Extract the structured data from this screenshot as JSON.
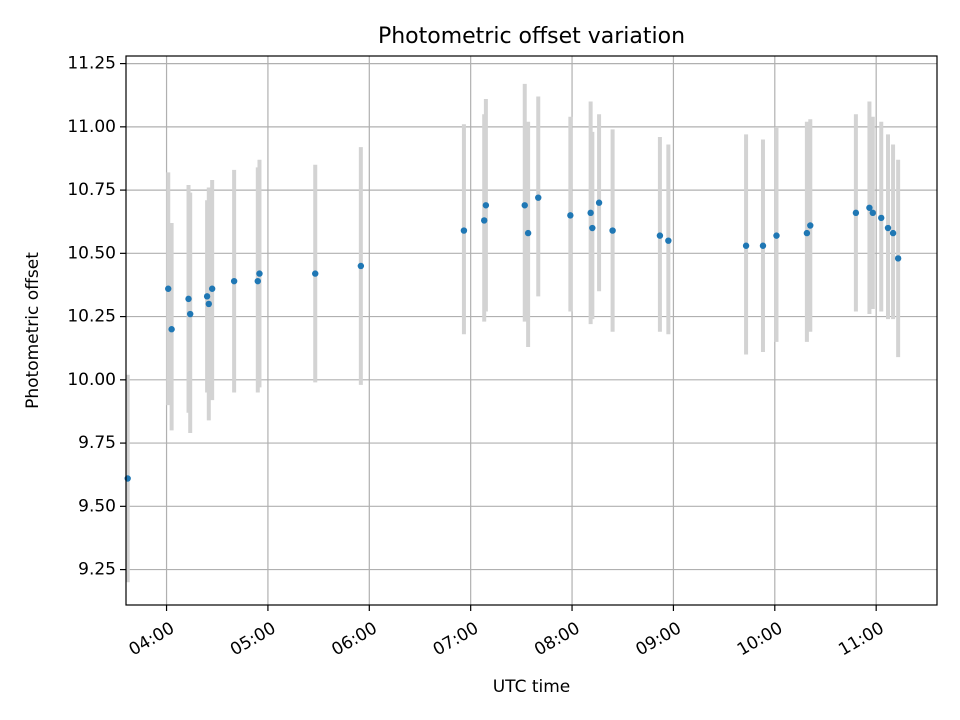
{
  "chart_data": {
    "type": "scatter",
    "title": "Photometric offset variation",
    "xlabel": "UTC time",
    "ylabel": "Photometric offset",
    "xlim": [
      "03:36",
      "11:36"
    ],
    "ylim": [
      9.11,
      11.28
    ],
    "grid": true,
    "x_ticks": [
      "04:00",
      "05:00",
      "06:00",
      "07:00",
      "08:00",
      "09:00",
      "10:00",
      "11:00"
    ],
    "y_ticks": [
      "9.25",
      "9.50",
      "9.75",
      "10.00",
      "10.25",
      "10.50",
      "10.75",
      "11.00",
      "11.25"
    ],
    "series": [
      {
        "marker_color": "#1f77b4",
        "error_color": "#d3d3d3",
        "points": [
          {
            "x": "03:37",
            "y": 9.61,
            "ylow": 9.2,
            "yhigh": 10.02
          },
          {
            "x": "04:01",
            "y": 10.36,
            "ylow": 9.9,
            "yhigh": 10.82
          },
          {
            "x": "04:03",
            "y": 10.2,
            "ylow": 9.8,
            "yhigh": 10.62
          },
          {
            "x": "04:13",
            "y": 10.32,
            "ylow": 9.87,
            "yhigh": 10.77
          },
          {
            "x": "04:14",
            "y": 10.26,
            "ylow": 9.79,
            "yhigh": 10.74
          },
          {
            "x": "04:24",
            "y": 10.33,
            "ylow": 9.95,
            "yhigh": 10.71
          },
          {
            "x": "04:25",
            "y": 10.3,
            "ylow": 9.84,
            "yhigh": 10.76
          },
          {
            "x": "04:27",
            "y": 10.36,
            "ylow": 9.92,
            "yhigh": 10.79
          },
          {
            "x": "04:40",
            "y": 10.39,
            "ylow": 9.95,
            "yhigh": 10.83
          },
          {
            "x": "04:54",
            "y": 10.39,
            "ylow": 9.95,
            "yhigh": 10.84
          },
          {
            "x": "04:55",
            "y": 10.42,
            "ylow": 9.97,
            "yhigh": 10.87
          },
          {
            "x": "05:28",
            "y": 10.42,
            "ylow": 9.99,
            "yhigh": 10.85
          },
          {
            "x": "05:55",
            "y": 10.45,
            "ylow": 9.98,
            "yhigh": 10.92
          },
          {
            "x": "06:56",
            "y": 10.59,
            "ylow": 10.18,
            "yhigh": 11.01
          },
          {
            "x": "07:08",
            "y": 10.63,
            "ylow": 10.23,
            "yhigh": 11.05
          },
          {
            "x": "07:09",
            "y": 10.69,
            "ylow": 10.27,
            "yhigh": 11.11
          },
          {
            "x": "07:32",
            "y": 10.69,
            "ylow": 10.23,
            "yhigh": 11.17
          },
          {
            "x": "07:34",
            "y": 10.58,
            "ylow": 10.13,
            "yhigh": 11.02
          },
          {
            "x": "07:40",
            "y": 10.72,
            "ylow": 10.33,
            "yhigh": 11.12
          },
          {
            "x": "07:59",
            "y": 10.65,
            "ylow": 10.27,
            "yhigh": 11.04
          },
          {
            "x": "08:11",
            "y": 10.66,
            "ylow": 10.22,
            "yhigh": 11.1
          },
          {
            "x": "08:12",
            "y": 10.6,
            "ylow": 10.24,
            "yhigh": 10.98
          },
          {
            "x": "08:16",
            "y": 10.7,
            "ylow": 10.35,
            "yhigh": 11.05
          },
          {
            "x": "08:24",
            "y": 10.59,
            "ylow": 10.19,
            "yhigh": 10.99
          },
          {
            "x": "08:52",
            "y": 10.57,
            "ylow": 10.19,
            "yhigh": 10.96
          },
          {
            "x": "08:57",
            "y": 10.55,
            "ylow": 10.18,
            "yhigh": 10.93
          },
          {
            "x": "09:43",
            "y": 10.53,
            "ylow": 10.1,
            "yhigh": 10.97
          },
          {
            "x": "09:53",
            "y": 10.53,
            "ylow": 10.11,
            "yhigh": 10.95
          },
          {
            "x": "10:01",
            "y": 10.57,
            "ylow": 10.15,
            "yhigh": 11.0
          },
          {
            "x": "10:19",
            "y": 10.58,
            "ylow": 10.15,
            "yhigh": 11.02
          },
          {
            "x": "10:21",
            "y": 10.61,
            "ylow": 10.19,
            "yhigh": 11.03
          },
          {
            "x": "10:48",
            "y": 10.66,
            "ylow": 10.27,
            "yhigh": 11.05
          },
          {
            "x": "10:56",
            "y": 10.68,
            "ylow": 10.26,
            "yhigh": 11.1
          },
          {
            "x": "10:58",
            "y": 10.66,
            "ylow": 10.28,
            "yhigh": 11.04
          },
          {
            "x": "11:03",
            "y": 10.64,
            "ylow": 10.27,
            "yhigh": 11.02
          },
          {
            "x": "11:07",
            "y": 10.6,
            "ylow": 10.24,
            "yhigh": 10.97
          },
          {
            "x": "11:10",
            "y": 10.58,
            "ylow": 10.24,
            "yhigh": 10.93
          },
          {
            "x": "11:13",
            "y": 10.48,
            "ylow": 10.09,
            "yhigh": 10.87
          }
        ]
      }
    ]
  }
}
